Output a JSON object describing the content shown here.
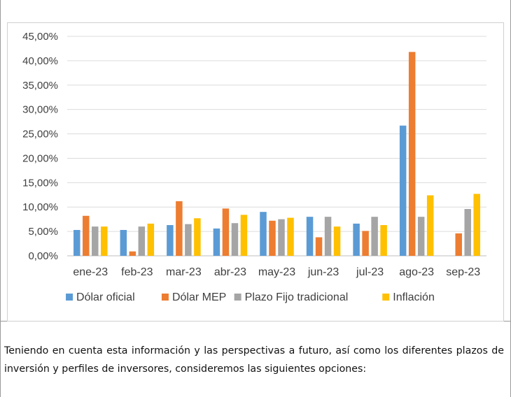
{
  "paragraph": "Teniendo en cuenta esta información y las perspectivas a futuro, así como los diferentes plazos de inversión y perfiles de inversores, consideremos las siguientes opciones:",
  "colors": {
    "Dólar oficial": "#5b9bd5",
    "Dólar MEP": "#ed7d31",
    "Plazo Fijo tradicional": "#a5a5a5",
    "Inflación": "#ffc000"
  },
  "chart_data": {
    "type": "bar",
    "title": "",
    "xlabel": "",
    "ylabel": "",
    "categories": [
      "ene-23",
      "feb-23",
      "mar-23",
      "abr-23",
      "may-23",
      "jun-23",
      "jul-23",
      "ago-23",
      "sep-23"
    ],
    "ylim": [
      0,
      45
    ],
    "yticks": [
      "0,00%",
      "5,00%",
      "10,00%",
      "15,00%",
      "20,00%",
      "25,00%",
      "30,00%",
      "35,00%",
      "40,00%",
      "45,00%"
    ],
    "grid": true,
    "legend": "bottom",
    "series": [
      {
        "name": "Dólar oficial",
        "values": [
          5.3,
          5.3,
          6.3,
          5.6,
          9.0,
          8.0,
          6.6,
          26.7,
          null
        ]
      },
      {
        "name": "Dólar MEP",
        "values": [
          8.2,
          0.9,
          11.2,
          9.7,
          7.2,
          3.8,
          5.1,
          41.8,
          4.6
        ]
      },
      {
        "name": "Plazo Fijo tradicional",
        "values": [
          6.0,
          6.0,
          6.5,
          6.7,
          7.5,
          8.0,
          8.0,
          8.0,
          9.6
        ]
      },
      {
        "name": "Inflación",
        "values": [
          6.0,
          6.6,
          7.7,
          8.4,
          7.8,
          6.0,
          6.3,
          12.4,
          12.7
        ]
      }
    ]
  }
}
